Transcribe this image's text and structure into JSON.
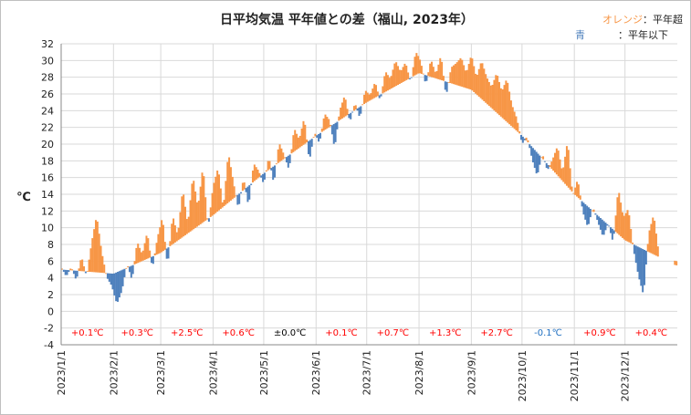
{
  "chart_data": {
    "type": "bar",
    "title": "日平均気温 平年値との差（福山, 2023年）",
    "ylabel": "℃",
    "ylim": [
      -4,
      32
    ],
    "yticks": [
      "-4",
      "-2",
      "0",
      "2",
      "4",
      "6",
      "8",
      "10",
      "12",
      "14",
      "16",
      "18",
      "20",
      "22",
      "24",
      "26",
      "28",
      "30",
      "32"
    ],
    "xticks": [
      "2023/1/1",
      "2023/2/1",
      "2023/3/1",
      "2023/4/1",
      "2023/5/1",
      "2023/6/1",
      "2023/7/1",
      "2023/8/1",
      "2023/9/1",
      "2023/10/1",
      "2023/11/1",
      "2023/12/1"
    ],
    "legend": [
      {
        "label": "オレンジ",
        "suffix": "：平年超",
        "color": "#f79646"
      },
      {
        "label": "青",
        "suffix": "：平年以下",
        "color": "#4f81bd"
      }
    ],
    "monthly_anomaly": [
      {
        "month": "2023/1",
        "text": "+0.1℃",
        "color": "#ff0000"
      },
      {
        "month": "2023/2",
        "text": "+0.3℃",
        "color": "#ff0000"
      },
      {
        "month": "2023/3",
        "text": "+2.5℃",
        "color": "#ff0000"
      },
      {
        "month": "2023/4",
        "text": "+0.6℃",
        "color": "#ff0000"
      },
      {
        "month": "2023/5",
        "text": "±0.0℃",
        "color": "#000000"
      },
      {
        "month": "2023/6",
        "text": "+0.1℃",
        "color": "#ff0000"
      },
      {
        "month": "2023/7",
        "text": "+0.7℃",
        "color": "#ff0000"
      },
      {
        "month": "2023/8",
        "text": "+1.3℃",
        "color": "#ff0000"
      },
      {
        "month": "2023/9",
        "text": "+2.7℃",
        "color": "#ff0000"
      },
      {
        "month": "2023/10",
        "text": "-0.1℃",
        "color": "#1f6fc1"
      },
      {
        "month": "2023/11",
        "text": "+0.9℃",
        "color": "#ff0000"
      },
      {
        "month": "2023/12",
        "text": "+0.4℃",
        "color": "#ff0000"
      }
    ],
    "normal_anchors": {
      "day": [
        0,
        31,
        59,
        90,
        120,
        151,
        181,
        212,
        243,
        273,
        304,
        334,
        364
      ],
      "value": [
        5.0,
        4.5,
        7.0,
        11.5,
        16.5,
        21.0,
        25.0,
        28.5,
        26.5,
        21.0,
        14.0,
        8.5,
        5.5
      ]
    },
    "diff_anchors": {
      "day": [
        0,
        3,
        6,
        9,
        12,
        15,
        18,
        21,
        24,
        27,
        30,
        33,
        36,
        39,
        42,
        45,
        48,
        51,
        54,
        57,
        60,
        63,
        66,
        69,
        72,
        75,
        78,
        81,
        84,
        87,
        90,
        93,
        96,
        99,
        102,
        105,
        108,
        111,
        114,
        117,
        120,
        123,
        126,
        129,
        132,
        135,
        138,
        141,
        144,
        147,
        150,
        153,
        156,
        159,
        162,
        165,
        168,
        171,
        174,
        177,
        180,
        183,
        186,
        189,
        192,
        195,
        198,
        201,
        204,
        207,
        210,
        213,
        216,
        219,
        222,
        225,
        228,
        231,
        234,
        237,
        240,
        243,
        246,
        249,
        252,
        255,
        258,
        261,
        264,
        267,
        270,
        273,
        276,
        279,
        282,
        285,
        288,
        291,
        294,
        297,
        300,
        303,
        306,
        309,
        312,
        315,
        318,
        321,
        324,
        327,
        330,
        333,
        336,
        339,
        342,
        345,
        348,
        351,
        354,
        357,
        360,
        363
      ],
      "value": [
        0.3,
        -0.8,
        0.4,
        -1.2,
        1.8,
        -0.6,
        3.5,
        6.8,
        2.5,
        -0.5,
        -1.5,
        -3.8,
        -2.5,
        0.5,
        -1.8,
        2.6,
        0.8,
        3.2,
        -1.5,
        2.0,
        4.2,
        -2.3,
        3.5,
        0.6,
        5.8,
        1.0,
        6.5,
        2.2,
        6.8,
        -1.2,
        3.5,
        5.2,
        -0.3,
        6.0,
        2.0,
        -1.8,
        1.5,
        -2.5,
        2.2,
        0.8,
        -1.3,
        1.6,
        -2.2,
        2.4,
        0.5,
        -1.8,
        2.8,
        1.0,
        3.2,
        -2.5,
        0.6,
        -1.2,
        2.0,
        0.8,
        -3.0,
        1.2,
        2.6,
        -1.1,
        0.9,
        -1.4,
        1.6,
        0.6,
        1.9,
        -0.8,
        2.5,
        1.2,
        3.1,
        1.4,
        2.2,
        -0.6,
        2.8,
        1.4,
        -1.2,
        2.1,
        0.5,
        3.0,
        -1.8,
        1.9,
        2.6,
        3.5,
        1.8,
        4.2,
        2.0,
        4.6,
        3.2,
        2.5,
        4.8,
        3.1,
        5.2,
        2.6,
        1.5,
        -1.0,
        0.6,
        -1.5,
        -2.8,
        0.6,
        -0.8,
        1.2,
        3.5,
        1.0,
        5.5,
        -0.4,
        2.2,
        -1.2,
        -2.5,
        0.5,
        -0.8,
        -2.0,
        0.2,
        -1.6,
        5.5,
        2.6,
        4.0,
        -0.6,
        -3.5,
        -5.5,
        2.2,
        4.8,
        0.5
      ]
    }
  }
}
